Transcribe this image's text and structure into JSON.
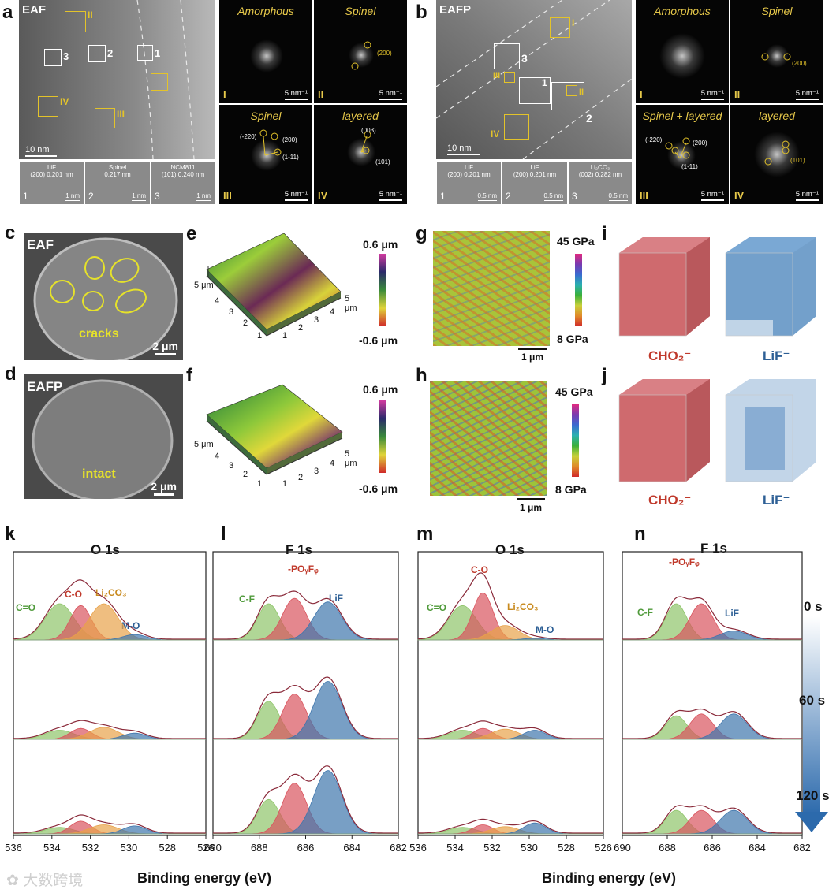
{
  "panels": {
    "a": {
      "label": "a",
      "sample": "EAF",
      "scalebar": "10 nm",
      "regions_white": [
        "1",
        "2",
        "3"
      ],
      "regions_yellow": [
        "I",
        "II",
        "III",
        "IV"
      ],
      "fft": [
        {
          "title": "Amorphous",
          "roman": "I",
          "scale": "5 nm⁻¹",
          "spots": []
        },
        {
          "title": "Spinel",
          "roman": "II",
          "scale": "5 nm⁻¹",
          "spots": [
            "(200)"
          ]
        },
        {
          "title": "Spinel",
          "roman": "III",
          "scale": "5 nm⁻¹",
          "spots": [
            "(-220)",
            "(200)",
            "(1-11)"
          ]
        },
        {
          "title": "layered",
          "roman": "IV",
          "scale": "5 nm⁻¹",
          "spots": [
            "(003)",
            "(101)"
          ]
        }
      ],
      "hrtem": [
        {
          "num": "1",
          "caption_l1": "LiF",
          "caption_l2": "(200) 0.201 nm",
          "scale": "1 nm"
        },
        {
          "num": "2",
          "caption_l1": "Spinel",
          "caption_l2": "0.217 nm",
          "scale": "1 nm"
        },
        {
          "num": "3",
          "caption_l1": "NCM811",
          "caption_l2": "(101) 0.240 nm",
          "scale": "1 nm"
        }
      ]
    },
    "b": {
      "label": "b",
      "sample": "EAFP",
      "scalebar": "10 nm",
      "regions_white": [
        "1",
        "2",
        "3"
      ],
      "regions_yellow": [
        "I",
        "II",
        "III",
        "IV"
      ],
      "fft": [
        {
          "title": "Amorphous",
          "roman": "I",
          "scale": "5 nm⁻¹",
          "spots": []
        },
        {
          "title": "Spinel",
          "roman": "II",
          "scale": "5 nm⁻¹",
          "spots": [
            "(200)"
          ]
        },
        {
          "title": "Spinel + layered",
          "roman": "III",
          "scale": "5 nm⁻¹",
          "spots": [
            "(-220)",
            "(200)",
            "(1-11)"
          ]
        },
        {
          "title": "layered",
          "roman": "IV",
          "scale": "5 nm⁻¹",
          "spots": [
            "(101)"
          ]
        }
      ],
      "hrtem": [
        {
          "num": "1",
          "caption_l1": "LiF",
          "caption_l2": "(200) 0.201 nm",
          "scale": "0.5 nm"
        },
        {
          "num": "2",
          "caption_l1": "LiF",
          "caption_l2": "(200) 0.201 nm",
          "scale": "0.5 nm"
        },
        {
          "num": "3",
          "caption_l1": "Li₂CO₃",
          "caption_l2": "(002) 0.282 nm",
          "scale": "0.5 nm"
        }
      ]
    },
    "c": {
      "label": "c",
      "sample": "EAF",
      "note": "cracks",
      "scalebar": "2 μm"
    },
    "d": {
      "label": "d",
      "sample": "EAFP",
      "note": "intact",
      "scalebar": "2 μm"
    },
    "e": {
      "label": "e",
      "cb_max": "0.6 μm",
      "cb_min": "-0.6 μm",
      "axis_ticks_left": [
        "5 μm",
        "4",
        "3",
        "2",
        "1"
      ],
      "axis_ticks_right": [
        "5 μm",
        "4",
        "3",
        "2",
        "1"
      ]
    },
    "f": {
      "label": "f",
      "cb_max": "0.6 μm",
      "cb_min": "-0.6 μm",
      "axis_ticks_left": [
        "5 μm",
        "4",
        "3",
        "2",
        "1"
      ],
      "axis_ticks_right": [
        "5 μm",
        "4",
        "3",
        "2",
        "1"
      ]
    },
    "g": {
      "label": "g",
      "cb_max": "45 GPa",
      "cb_min": "8 GPa",
      "scalebar": "1 μm"
    },
    "h": {
      "label": "h",
      "cb_max": "45 GPa",
      "cb_min": "8 GPa",
      "scalebar": "1 μm"
    },
    "i": {
      "label": "i",
      "species1": "CHO₂⁻",
      "species2": "LiF⁻"
    },
    "j": {
      "label": "j",
      "species1": "CHO₂⁻",
      "species2": "LiF⁻"
    }
  },
  "colors": {
    "green": "#8fc56a",
    "red": "#d9545e",
    "orange": "#e8a24a",
    "blue": "#3f76ad",
    "envelope": "#8a2a3a",
    "label_red": "#c0392b",
    "label_orange": "#c88a1e",
    "label_green": "#4f9a3a",
    "label_blue": "#2d5f95",
    "text_yellow": "#e6e22a"
  },
  "xps": {
    "x_label": "Binding energy (eV)",
    "time_labels": [
      "0 s",
      "60 s",
      "120 s"
    ],
    "panels": [
      {
        "label": "k",
        "title": "O 1s",
        "xticks": [
          "536",
          "534",
          "532",
          "530",
          "528",
          "526"
        ],
        "peak_labels": [
          "C=O",
          "C-O",
          "Li₂CO₃",
          "M-O"
        ],
        "stacks": [
          {
            "time": "0 s",
            "green": 1.0,
            "red": 0.95,
            "orange": 1.0,
            "blue": 0.15
          },
          {
            "time": "60 s",
            "green": 0.25,
            "red": 0.3,
            "orange": 0.33,
            "blue": 0.17
          },
          {
            "time": "120 s",
            "green": 0.18,
            "red": 0.35,
            "orange": 0.25,
            "blue": 0.22
          }
        ]
      },
      {
        "label": "l",
        "title": "F 1s",
        "xticks": [
          "690",
          "688",
          "686",
          "684",
          "682"
        ],
        "peak_labels": [
          "C-F",
          "-POᵧFᵩ",
          "LiF"
        ],
        "stacks": [
          {
            "time": "0 s",
            "green": 1.0,
            "red": 1.15,
            "blue": 1.05
          },
          {
            "time": "60 s",
            "green": 1.05,
            "red": 1.25,
            "blue": 1.6
          },
          {
            "time": "120 s",
            "green": 0.95,
            "red": 1.4,
            "blue": 1.75
          }
        ]
      },
      {
        "label": "m",
        "title": "O 1s",
        "xticks": [
          "536",
          "534",
          "532",
          "530",
          "528",
          "526"
        ],
        "peak_labels": [
          "C=O",
          "C-O",
          "Li₂CO₃",
          "M-O"
        ],
        "stacks": [
          {
            "time": "0 s",
            "green": 0.95,
            "red": 1.3,
            "orange": 0.4,
            "blue": 0.05
          },
          {
            "time": "60 s",
            "green": 0.25,
            "red": 0.3,
            "orange": 0.28,
            "blue": 0.25
          },
          {
            "time": "120 s",
            "green": 0.18,
            "red": 0.25,
            "orange": 0.2,
            "blue": 0.3
          }
        ]
      },
      {
        "label": "n",
        "title": "F 1s",
        "xticks": [
          "690",
          "688",
          "686",
          "684",
          "682"
        ],
        "peak_labels": [
          "C-F",
          "-POᵧFᵩ",
          "LiF"
        ],
        "stacks": [
          {
            "time": "0 s",
            "green": 1.0,
            "red": 1.0,
            "blue": 0.25
          },
          {
            "time": "60 s",
            "green": 0.65,
            "red": 0.7,
            "blue": 0.7
          },
          {
            "time": "120 s",
            "green": 0.65,
            "red": 0.65,
            "blue": 0.65
          }
        ]
      }
    ]
  },
  "watermark": "大数跨境"
}
